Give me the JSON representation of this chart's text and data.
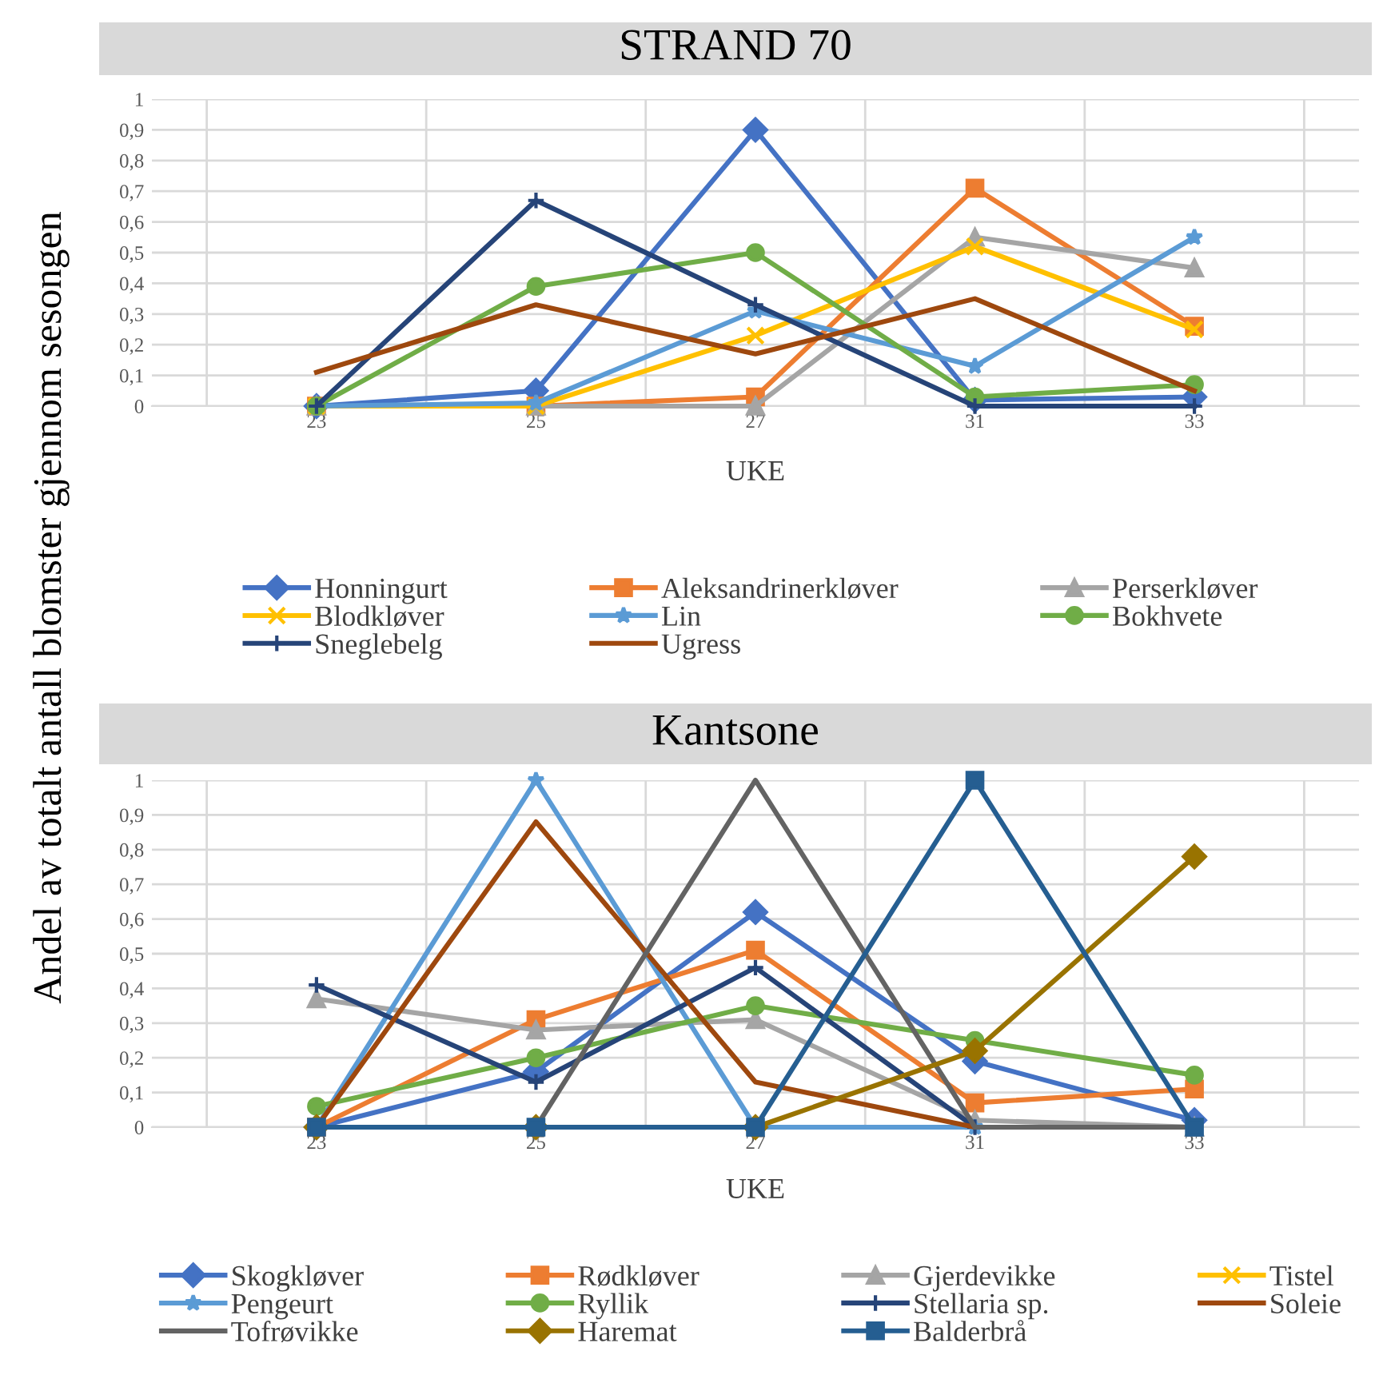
{
  "chart_data": [
    {
      "type": "line",
      "title": "STRAND 70",
      "xlabel": "UKE",
      "ylabel": "Andel av totalt antall blomster gjennom sesongen",
      "categories": [
        "23",
        "25",
        "27",
        "31",
        "33"
      ],
      "ylim": [
        0,
        1
      ],
      "yticks": [
        0,
        {
          "value": 0.1,
          "label": "0,1"
        },
        {
          "value": 0.2,
          "label": "0,2"
        },
        {
          "value": 0.3,
          "label": "0,3"
        },
        {
          "value": 0.4,
          "label": "0,4"
        },
        {
          "value": 0.5,
          "label": "0,5"
        },
        {
          "value": 0.6,
          "label": "0,6"
        },
        {
          "value": 0.7,
          "label": "0,7"
        },
        {
          "value": 0.8,
          "label": "0,8"
        },
        {
          "value": 0.9,
          "label": "0,9"
        },
        1
      ],
      "grid": true,
      "legend": "bottom",
      "series": [
        {
          "name": "Honningurt",
          "color": "#4472c4",
          "marker": "diamond",
          "values": [
            0,
            0.05,
            0.9,
            0.02,
            0.03
          ]
        },
        {
          "name": "Aleksandrinerkløver",
          "color": "#ed7d31",
          "marker": "square",
          "values": [
            0,
            0,
            0.03,
            0.71,
            0.26
          ]
        },
        {
          "name": "Perserkløver",
          "color": "#a5a5a5",
          "marker": "triangle",
          "values": [
            0,
            0,
            0,
            0.55,
            0.45
          ]
        },
        {
          "name": "Blodkløver",
          "color": "#ffc000",
          "marker": "cross",
          "values": [
            0,
            0,
            0.23,
            0.52,
            0.25
          ]
        },
        {
          "name": "Lin",
          "color": "#5b9bd5",
          "marker": "star",
          "values": [
            0,
            0.01,
            0.31,
            0.13,
            0.55
          ]
        },
        {
          "name": "Bokhvete",
          "color": "#70ad47",
          "marker": "circle",
          "values": [
            0,
            0.39,
            0.5,
            0.03,
            0.07
          ]
        },
        {
          "name": "Sneglebelg",
          "color": "#264478",
          "marker": "plus",
          "values": [
            0,
            0.67,
            0.33,
            0,
            0
          ]
        },
        {
          "name": "Ugress",
          "color": "#9e480e",
          "marker": "none",
          "values": [
            0.11,
            0.33,
            0.17,
            0.35,
            0.05
          ]
        }
      ]
    },
    {
      "type": "line",
      "title": "Kantsone",
      "xlabel": "UKE",
      "categories": [
        "23",
        "25",
        "27",
        "31",
        "33"
      ],
      "ylim": [
        0,
        1
      ],
      "yticks": [
        0,
        {
          "value": 0.1,
          "label": "0,1"
        },
        {
          "value": 0.2,
          "label": "0,2"
        },
        {
          "value": 0.3,
          "label": "0,3"
        },
        {
          "value": 0.4,
          "label": "0,4"
        },
        {
          "value": 0.5,
          "label": "0,5"
        },
        {
          "value": 0.6,
          "label": "0,6"
        },
        {
          "value": 0.7,
          "label": "0,7"
        },
        {
          "value": 0.8,
          "label": "0,8"
        },
        {
          "value": 0.9,
          "label": "0,9"
        },
        1
      ],
      "grid": true,
      "legend": "bottom",
      "series": [
        {
          "name": "Skogkløver",
          "color": "#4472c4",
          "marker": "diamond",
          "values": [
            0,
            0.16,
            0.62,
            0.19,
            0.02
          ]
        },
        {
          "name": "Rødkløver",
          "color": "#ed7d31",
          "marker": "square",
          "values": [
            0,
            0.31,
            0.51,
            0.07,
            0.11
          ]
        },
        {
          "name": "Gjerdevikke",
          "color": "#a5a5a5",
          "marker": "triangle",
          "values": [
            0.37,
            0.28,
            0.31,
            0.02,
            0
          ]
        },
        {
          "name": "Tistel",
          "color": "#ffc000",
          "marker": "cross",
          "values": [
            null,
            null,
            null,
            null,
            null
          ]
        },
        {
          "name": "Pengeurt",
          "color": "#5b9bd5",
          "marker": "star",
          "values": [
            0,
            1,
            0,
            0,
            0
          ]
        },
        {
          "name": "Ryllik",
          "color": "#70ad47",
          "marker": "circle",
          "values": [
            0.06,
            0.2,
            0.35,
            0.25,
            0.15
          ]
        },
        {
          "name": "Stellaria sp.",
          "color": "#264478",
          "marker": "plus",
          "values": [
            0.41,
            0.13,
            0.46,
            0,
            0
          ]
        },
        {
          "name": "Soleie",
          "color": "#9e480e",
          "marker": "none",
          "values": [
            0,
            0.88,
            0.13,
            0,
            0
          ]
        },
        {
          "name": "Tofrøvikke",
          "color": "#636363",
          "marker": "none",
          "values": [
            0,
            0,
            1,
            0,
            0
          ]
        },
        {
          "name": "Haremat",
          "color": "#997300",
          "marker": "diamond",
          "values": [
            0,
            0,
            0,
            0.22,
            0.78
          ]
        },
        {
          "name": "Balderbrå",
          "color": "#255e91",
          "marker": "square",
          "values": [
            0,
            0,
            0,
            1,
            0
          ]
        }
      ]
    }
  ]
}
